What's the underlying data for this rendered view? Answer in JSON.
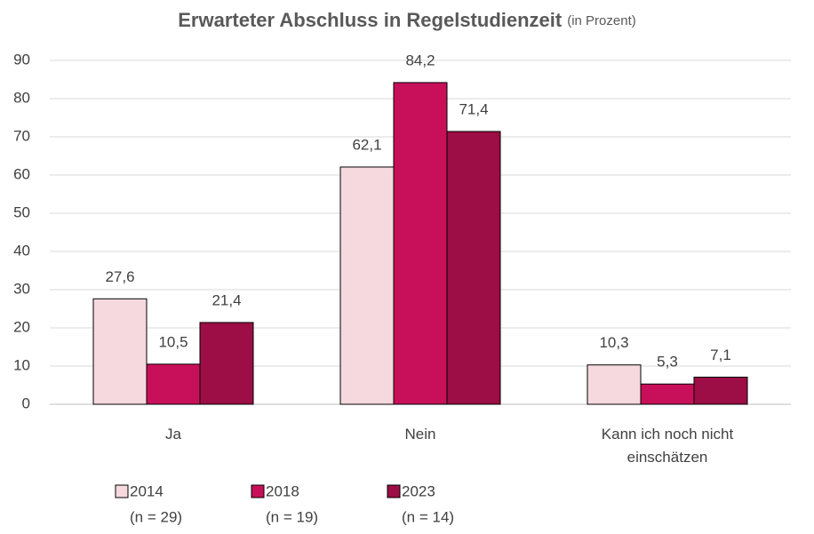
{
  "chart_data": {
    "type": "bar",
    "title": "Erwarteter Abschluss in Regelstudienzeit",
    "subtitle": "(in Prozent)",
    "categories": [
      "Ja",
      "Nein",
      "Kann ich noch nicht einschätzen"
    ],
    "series": [
      {
        "name": "2014",
        "sample": "(n = 29)",
        "color": "#f5d9de",
        "values": [
          27.6,
          62.1,
          10.3
        ],
        "value_labels": [
          "27,6",
          "62,1",
          "10,3"
        ]
      },
      {
        "name": "2018",
        "sample": "(n = 19)",
        "color": "#c8105a",
        "values": [
          10.5,
          84.2,
          5.3
        ],
        "value_labels": [
          "10,5",
          "84,2",
          "5,3"
        ]
      },
      {
        "name": "2023",
        "sample": "(n = 14)",
        "color": "#9c0e45",
        "values": [
          21.4,
          71.4,
          7.1
        ],
        "value_labels": [
          "21,4",
          "71,4",
          "7,1"
        ]
      }
    ],
    "ylim": [
      0,
      90
    ],
    "yticks": [
      0,
      10,
      20,
      30,
      40,
      50,
      60,
      70,
      80,
      90
    ],
    "grid": true
  }
}
